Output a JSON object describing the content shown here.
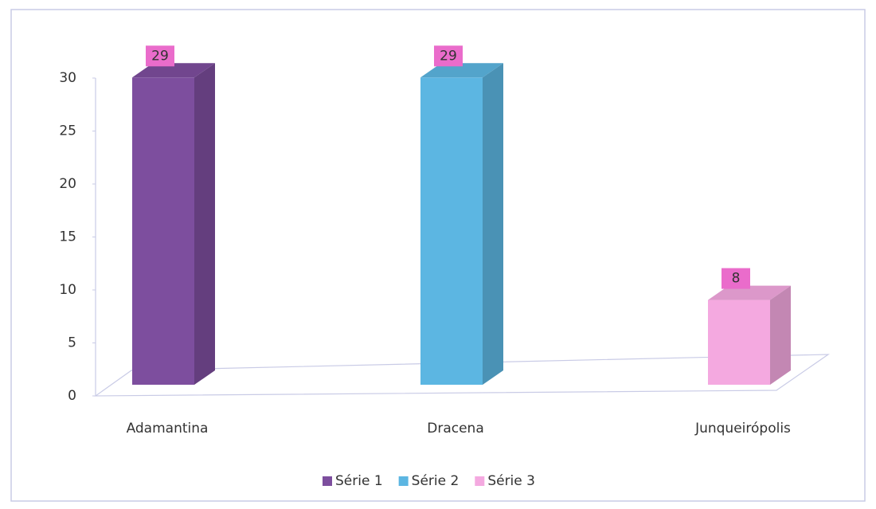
{
  "chart_data": {
    "type": "bar3d",
    "categories": [
      "Adamantina",
      "Dracena",
      "Junqueirópolis"
    ],
    "series": [
      {
        "name": "Série 1",
        "color": "#7d4e9e",
        "values": [
          29,
          null,
          null
        ]
      },
      {
        "name": "Série 2",
        "color": "#5cb6e2",
        "values": [
          null,
          29,
          null
        ]
      },
      {
        "name": "Série 3",
        "color": "#f4a9e0",
        "values": [
          null,
          null,
          8
        ]
      }
    ],
    "ylim": [
      0,
      30
    ],
    "yticks": [
      0,
      5,
      10,
      15,
      20,
      25,
      30
    ],
    "legend": "bottom"
  }
}
